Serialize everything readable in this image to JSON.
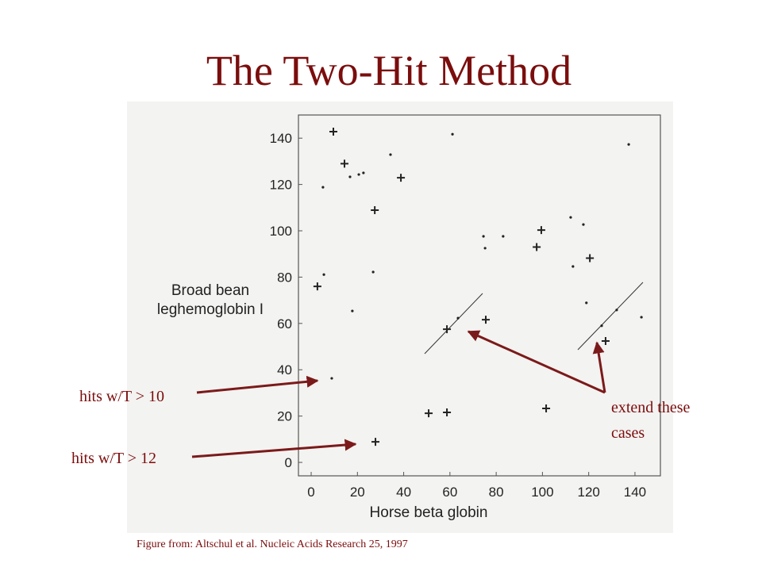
{
  "chart_data": {
    "type": "scatter",
    "title": "The Two-Hit Method",
    "xlabel": "Horse beta globin",
    "ylabel": [
      "Broad bean",
      "leghemoglobin I"
    ],
    "caption": "Figure from: Altschul et al.  Nucleic Acids Research 25, 1997",
    "annotations": [
      [
        "hits w/T > 10"
      ],
      [
        "hits w/T > 12"
      ],
      [
        "extend these",
        "cases"
      ]
    ],
    "xlim": [
      -5.5,
      151
    ],
    "ylim": [
      -5.8,
      150
    ],
    "xticks": [
      0,
      20,
      40,
      60,
      80,
      100,
      120,
      140
    ],
    "yticks": [
      0,
      20,
      40,
      60,
      80,
      100,
      120,
      140
    ],
    "series": [
      {
        "marker": "plus",
        "color": "#222222",
        "x": [
          9.6,
          14.4,
          38.8,
          27.5,
          99.5,
          97.5,
          120.5,
          2.7,
          58.7,
          75.5,
          127.3,
          50.8,
          58.7,
          101.6,
          27.8
        ],
        "values": [
          142.8,
          129,
          122.9,
          108.9,
          100.3,
          93,
          88.2,
          76,
          57.5,
          61.6,
          52.4,
          21.2,
          21.6,
          23.3,
          8.9
        ]
      },
      {
        "marker": "dot",
        "color": "#222222",
        "x": [
          5.1,
          16.8,
          20.6,
          22.6,
          34.3,
          61.1,
          137.3,
          5.5,
          26.8,
          17.8,
          63.5,
          74.5,
          75.2,
          83,
          112.2,
          117.7,
          113.2,
          119,
          125.6,
          132.1,
          142.8,
          8.9
        ],
        "values": [
          118.8,
          123.3,
          124.3,
          125,
          132.9,
          141.7,
          137.3,
          81.1,
          82.2,
          65.4,
          62.3,
          97.6,
          92.5,
          97.6,
          105.8,
          102.7,
          84.6,
          68.9,
          59,
          65.8,
          62.7,
          36.3
        ]
      }
    ]
  }
}
